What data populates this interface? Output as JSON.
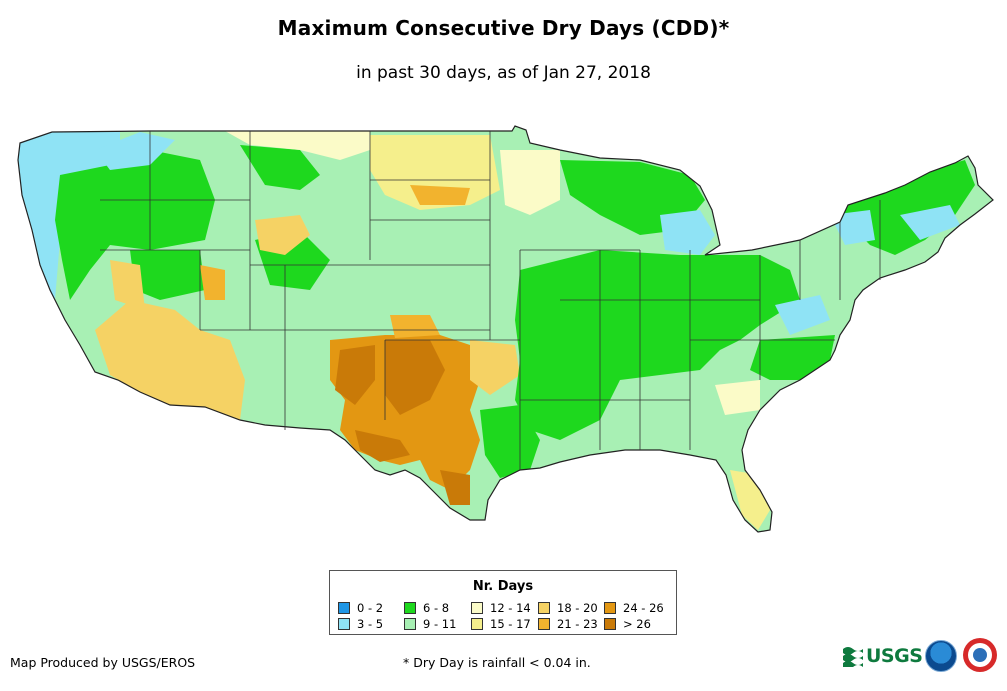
{
  "title": "Maximum Consecutive Dry Days (CDD)*",
  "subtitle": "in past 30 days, as of Jan 27, 2018",
  "legend": {
    "title": "Nr. Days",
    "items": [
      {
        "label": "0 - 2",
        "color": "#1e96e6"
      },
      {
        "label": "3 - 5",
        "color": "#8fe3f5"
      },
      {
        "label": "6 - 8",
        "color": "#1ed81e"
      },
      {
        "label": "9 - 11",
        "color": "#a8f0b4"
      },
      {
        "label": "12 - 14",
        "color": "#fbfbc8"
      },
      {
        "label": "15 - 17",
        "color": "#f5ef8c"
      },
      {
        "label": "18 - 20",
        "color": "#f5d264"
      },
      {
        "label": "21 - 23",
        "color": "#f2b32e"
      },
      {
        "label": "24 - 26",
        "color": "#e39712"
      },
      {
        "label": "> 26",
        "color": "#c97a08"
      }
    ]
  },
  "footer": {
    "credit": "Map Produced by USGS/EROS",
    "footnote": "* Dry Day is rainfall < 0.04 in."
  },
  "logos": {
    "usgs_text": "USGS"
  }
}
